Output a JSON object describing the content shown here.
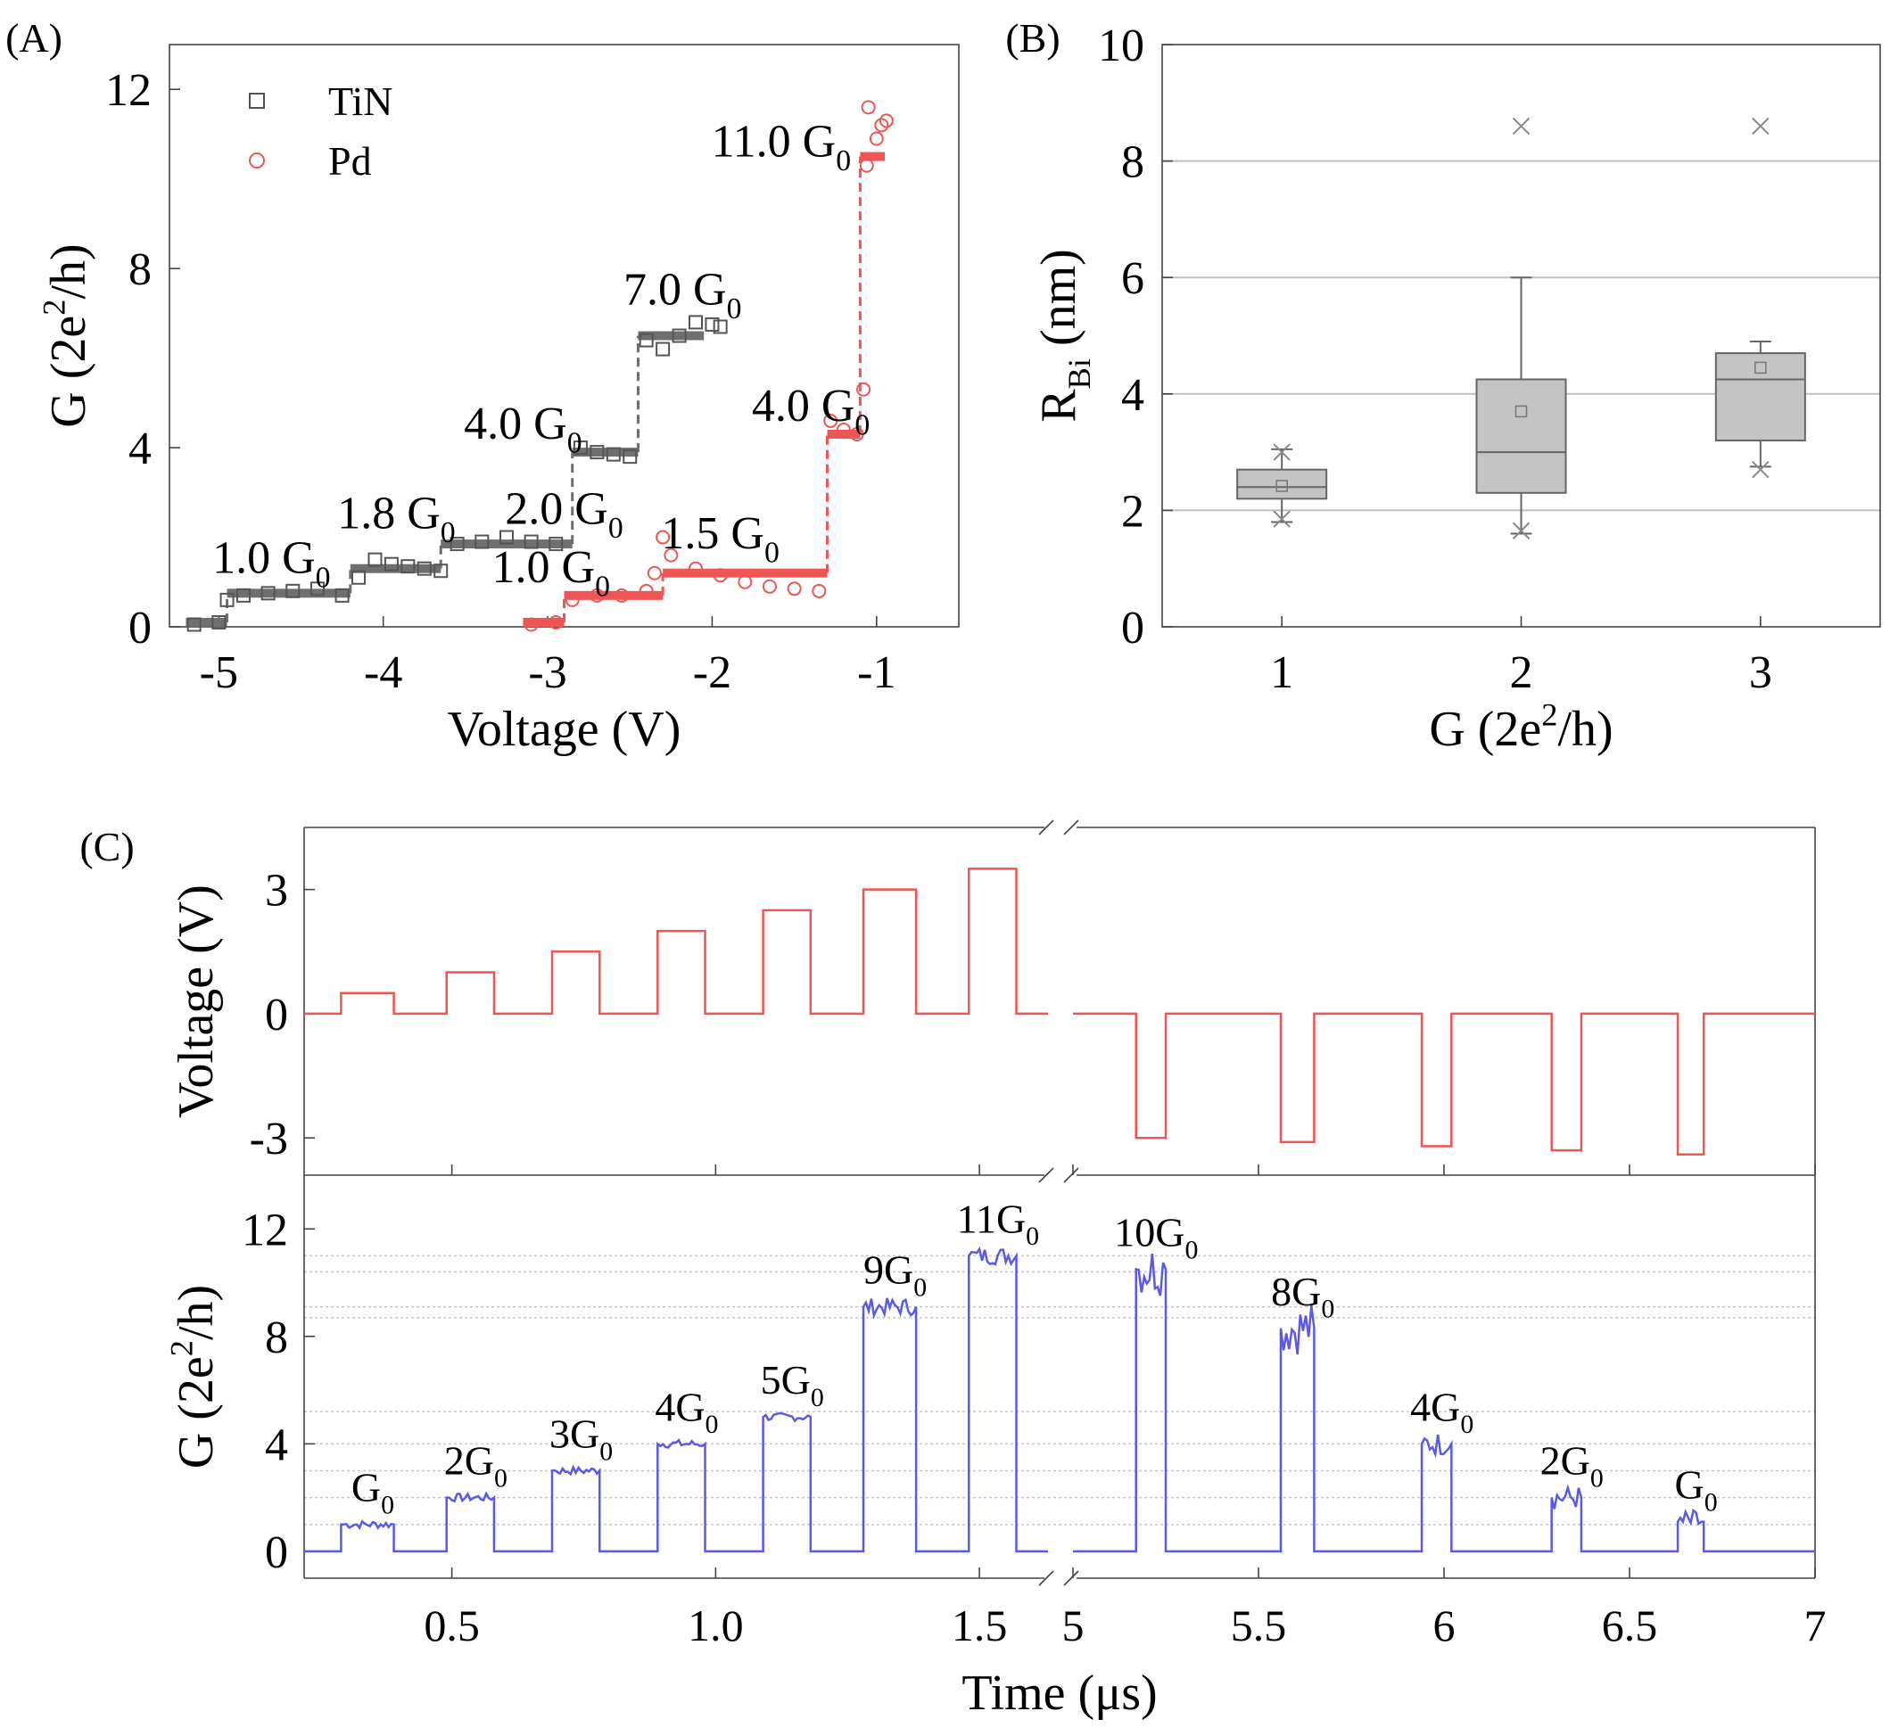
{
  "colors": {
    "tin": "#555555",
    "tin_line": "#6f6f6f",
    "pd": "#ee5555",
    "pulse": "#ee5555",
    "trace": "#5a5ae6",
    "box_fill": "#c4c4c4",
    "grid": "#bfbfbf"
  },
  "panel_labels": {
    "a": "(A)",
    "b": "(B)",
    "c": "(C)"
  },
  "chart_data": [
    {
      "id": "A",
      "type": "scatter",
      "xlabel": "Voltage (V)",
      "ylabel": {
        "main": "G (2e",
        "sup": "2",
        "end": "/h)"
      },
      "xlim": [
        -5.3,
        -0.5
      ],
      "ylim": [
        0,
        13
      ],
      "xticks": [
        -5,
        -4,
        -3,
        -2,
        -1
      ],
      "yticks": [
        0,
        4,
        8,
        12
      ],
      "legend": {
        "position": "top-left",
        "entries": [
          {
            "name": "TiN",
            "marker": "square"
          },
          {
            "name": "Pd",
            "marker": "circle"
          }
        ]
      },
      "series": [
        {
          "name": "TiN",
          "steps": [
            {
              "x0": -5.2,
              "x1": -4.95,
              "y": 0.1
            },
            {
              "x0": -4.95,
              "x1": -4.2,
              "y": 0.75
            },
            {
              "x0": -4.2,
              "x1": -3.65,
              "y": 1.3
            },
            {
              "x0": -3.65,
              "x1": -2.85,
              "y": 1.85
            },
            {
              "x0": -2.85,
              "x1": -2.45,
              "y": 3.9
            },
            {
              "x0": -2.45,
              "x1": -2.05,
              "y": 6.5
            }
          ],
          "points": [
            [
              -5.15,
              0.05
            ],
            [
              -5.0,
              0.1
            ],
            [
              -4.95,
              0.6
            ],
            [
              -4.85,
              0.7
            ],
            [
              -4.7,
              0.75
            ],
            [
              -4.55,
              0.8
            ],
            [
              -4.4,
              0.85
            ],
            [
              -4.25,
              0.7
            ],
            [
              -4.15,
              1.1
            ],
            [
              -4.05,
              1.5
            ],
            [
              -3.95,
              1.4
            ],
            [
              -3.85,
              1.35
            ],
            [
              -3.75,
              1.3
            ],
            [
              -3.65,
              1.25
            ],
            [
              -3.55,
              1.85
            ],
            [
              -3.4,
              1.9
            ],
            [
              -3.25,
              2.0
            ],
            [
              -3.1,
              1.9
            ],
            [
              -2.95,
              1.85
            ],
            [
              -2.8,
              4.0
            ],
            [
              -2.7,
              3.9
            ],
            [
              -2.6,
              3.85
            ],
            [
              -2.5,
              3.8
            ],
            [
              -2.4,
              6.4
            ],
            [
              -2.3,
              6.2
            ],
            [
              -2.2,
              6.5
            ],
            [
              -2.1,
              6.8
            ],
            [
              -2.0,
              6.75
            ],
            [
              -1.95,
              6.7
            ]
          ]
        },
        {
          "name": "Pd",
          "steps": [
            {
              "x0": -3.15,
              "x1": -2.9,
              "y": 0.1
            },
            {
              "x0": -2.9,
              "x1": -2.3,
              "y": 0.7
            },
            {
              "x0": -2.3,
              "x1": -1.3,
              "y": 1.2
            },
            {
              "x0": -1.3,
              "x1": -1.1,
              "y": 4.3
            },
            {
              "x0": -1.1,
              "x1": -0.95,
              "y": 10.5
            }
          ],
          "points": [
            [
              -3.1,
              0.05
            ],
            [
              -2.95,
              0.1
            ],
            [
              -2.85,
              0.6
            ],
            [
              -2.7,
              0.7
            ],
            [
              -2.55,
              0.7
            ],
            [
              -2.4,
              0.8
            ],
            [
              -2.35,
              1.2
            ],
            [
              -2.3,
              2.0
            ],
            [
              -2.25,
              1.6
            ],
            [
              -2.1,
              1.3
            ],
            [
              -1.95,
              1.15
            ],
            [
              -1.8,
              1.0
            ],
            [
              -1.65,
              0.9
            ],
            [
              -1.5,
              0.85
            ],
            [
              -1.35,
              0.8
            ],
            [
              -1.28,
              4.6
            ],
            [
              -1.2,
              4.4
            ],
            [
              -1.12,
              4.3
            ],
            [
              -1.08,
              5.3
            ],
            [
              -1.06,
              10.3
            ],
            [
              -1.05,
              11.6
            ],
            [
              -1.0,
              10.9
            ],
            [
              -0.97,
              11.2
            ],
            [
              -0.94,
              11.3
            ]
          ]
        }
      ],
      "annotations": [
        {
          "main": "1.0 G",
          "sub": "0",
          "x": -4.68,
          "y": 1.2
        },
        {
          "main": "1.8 G",
          "sub": "0",
          "x": -3.92,
          "y": 2.2
        },
        {
          "main": "2.0 G",
          "sub": "0",
          "x": -2.9,
          "y": 2.3
        },
        {
          "main": "1.0 G",
          "sub": "0",
          "x": -2.98,
          "y": 1.0
        },
        {
          "main": "4.0 G",
          "sub": "0",
          "x": -3.15,
          "y": 4.2
        },
        {
          "main": "1.5 G",
          "sub": "0",
          "x": -1.95,
          "y": 1.75
        },
        {
          "main": "7.0 G",
          "sub": "0",
          "x": -2.18,
          "y": 7.2
        },
        {
          "main": "4.0 G",
          "sub": "0",
          "x": -1.4,
          "y": 4.6
        },
        {
          "main": "11.0 G",
          "sub": "0",
          "x": -1.58,
          "y": 10.5
        }
      ]
    },
    {
      "id": "B",
      "type": "box",
      "xlabel": {
        "main": "G (2e",
        "sup": "2",
        "end": "/h)"
      },
      "ylabel": {
        "main": "R",
        "sub": "Bi",
        "end": " (nm)"
      },
      "xlim": [
        0.5,
        3.5
      ],
      "ylim": [
        0,
        10
      ],
      "xticks": [
        1,
        2,
        3
      ],
      "yticks": [
        0,
        2,
        4,
        6,
        8,
        10
      ],
      "grid": true,
      "boxes": [
        {
          "x": 1,
          "whisker_low": 1.8,
          "q1": 2.2,
          "median": 2.4,
          "q3": 2.7,
          "whisker_high": 3.05,
          "mean": 2.42,
          "min_mark": 1.85,
          "max_mark": 3.0
        },
        {
          "x": 2,
          "whisker_low": 1.6,
          "q1": 2.3,
          "median": 3.0,
          "q3": 4.25,
          "whisker_high": 6.0,
          "mean": 3.7,
          "min_mark": 1.65,
          "outlier": 8.6
        },
        {
          "x": 3,
          "whisker_low": 2.75,
          "q1": 3.2,
          "median": 4.25,
          "q3": 4.7,
          "whisker_high": 4.9,
          "mean": 4.45,
          "min_mark": 2.7,
          "outlier": 8.6
        }
      ]
    },
    {
      "id": "C-top",
      "type": "line",
      "ylabel": "Voltage (V)",
      "ylim": [
        -3.9,
        4.5
      ],
      "yticks": [
        -3,
        0,
        3
      ],
      "x_segments": [
        {
          "range": [
            0.22,
            1.63
          ]
        },
        {
          "range": [
            5.0,
            7.0
          ]
        }
      ],
      "pulses_a": [
        {
          "t0": 0.29,
          "t1": 0.39,
          "v": 0.5
        },
        {
          "t0": 0.49,
          "t1": 0.58,
          "v": 1.0
        },
        {
          "t0": 0.69,
          "t1": 0.78,
          "v": 1.5
        },
        {
          "t0": 0.89,
          "t1": 0.98,
          "v": 2.0
        },
        {
          "t0": 1.09,
          "t1": 1.18,
          "v": 2.5
        },
        {
          "t0": 1.28,
          "t1": 1.38,
          "v": 3.0
        },
        {
          "t0": 1.48,
          "t1": 1.57,
          "v": 3.5
        }
      ],
      "pulses_b": [
        {
          "t0": 5.17,
          "t1": 5.25,
          "v": -3.0
        },
        {
          "t0": 5.56,
          "t1": 5.65,
          "v": -3.1
        },
        {
          "t0": 5.94,
          "t1": 6.02,
          "v": -3.2
        },
        {
          "t0": 6.29,
          "t1": 6.37,
          "v": -3.3
        },
        {
          "t0": 6.63,
          "t1": 6.7,
          "v": -3.4
        }
      ]
    },
    {
      "id": "C-bottom",
      "type": "line",
      "xlabel": "Time (μs)",
      "ylabel": {
        "main": "G (2e",
        "sup": "2",
        "end": "/h)"
      },
      "ylim": [
        -1,
        14
      ],
      "yticks": [
        0,
        4,
        8,
        12
      ],
      "x_segments": [
        {
          "range": [
            0.22,
            1.63
          ],
          "ticks": [
            "0.5",
            "1.0",
            "1.5"
          ],
          "tick_values": [
            0.5,
            1.0,
            1.5
          ]
        },
        {
          "range": [
            5.0,
            7.0
          ],
          "ticks": [
            "5",
            "5.5",
            "6",
            "6.5",
            "7"
          ],
          "tick_values": [
            5.0,
            5.5,
            6.0,
            6.5,
            7.0
          ]
        }
      ],
      "ref_lines": [
        1.0,
        2.0,
        3.0,
        4.0,
        5.2,
        8.7,
        9.1,
        10.4,
        11.0
      ],
      "levels_a": [
        {
          "t0": 0.29,
          "t1": 0.39,
          "g": 1.0,
          "label": "G",
          "sub": "0"
        },
        {
          "t0": 0.49,
          "t1": 0.58,
          "g": 2.0,
          "label": "2G",
          "sub": "0"
        },
        {
          "t0": 0.69,
          "t1": 0.78,
          "g": 3.0,
          "label": "3G",
          "sub": "0"
        },
        {
          "t0": 0.89,
          "t1": 0.98,
          "g": 4.0,
          "label": "4G",
          "sub": "0"
        },
        {
          "t0": 1.09,
          "t1": 1.18,
          "g": 5.0,
          "label": "5G",
          "sub": "0"
        },
        {
          "t0": 1.28,
          "t1": 1.38,
          "g": 9.1,
          "label": "9G",
          "sub": "0"
        },
        {
          "t0": 1.48,
          "t1": 1.57,
          "g": 11.0,
          "label": "11G",
          "sub": "0"
        }
      ],
      "levels_b": [
        {
          "t0": 5.17,
          "t1": 5.25,
          "g": 10.5,
          "label": "10G",
          "sub": "0"
        },
        {
          "t0": 5.56,
          "t1": 5.65,
          "g": 8.3,
          "label": "8G",
          "sub": "0"
        },
        {
          "t0": 5.94,
          "t1": 6.02,
          "g": 4.0,
          "label": "4G",
          "sub": "0"
        },
        {
          "t0": 6.29,
          "t1": 6.37,
          "g": 2.0,
          "label": "2G",
          "sub": "0"
        },
        {
          "t0": 6.63,
          "t1": 6.7,
          "g": 1.1,
          "label": "G",
          "sub": "0"
        }
      ]
    }
  ]
}
